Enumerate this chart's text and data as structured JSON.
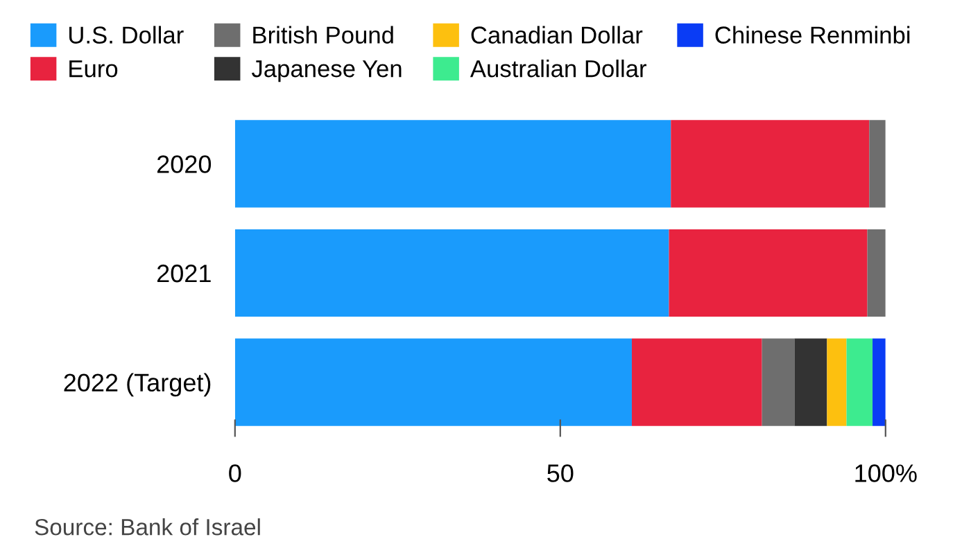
{
  "chart_data": {
    "type": "bar",
    "orientation": "horizontal",
    "stacked": true,
    "categories": [
      "2020",
      "2021",
      "2022 (Target)"
    ],
    "series": [
      {
        "name": "U.S. Dollar",
        "color": "#1a9bfc",
        "values": [
          67,
          66.7,
          61
        ]
      },
      {
        "name": "Euro",
        "color": "#e8233f",
        "values": [
          30.5,
          30.5,
          20
        ]
      },
      {
        "name": "British Pound",
        "color": "#6e6e6e",
        "values": [
          2.5,
          2.8,
          5
        ]
      },
      {
        "name": "Japanese Yen",
        "color": "#333333",
        "values": [
          null,
          null,
          5
        ]
      },
      {
        "name": "Canadian Dollar",
        "color": "#fdc00f",
        "values": [
          null,
          null,
          3
        ]
      },
      {
        "name": "Australian Dollar",
        "color": "#3deb8f",
        "values": [
          null,
          null,
          4
        ]
      },
      {
        "name": "Chinese Renminbi",
        "color": "#0a3cf5",
        "values": [
          null,
          null,
          2
        ]
      }
    ],
    "xlim": [
      0,
      100
    ],
    "xticks": [
      0,
      50,
      {
        "value": 100,
        "label": "100%"
      }
    ],
    "grid": false,
    "legend": "top",
    "annotations": [
      "Source: Bank of Israel"
    ]
  }
}
